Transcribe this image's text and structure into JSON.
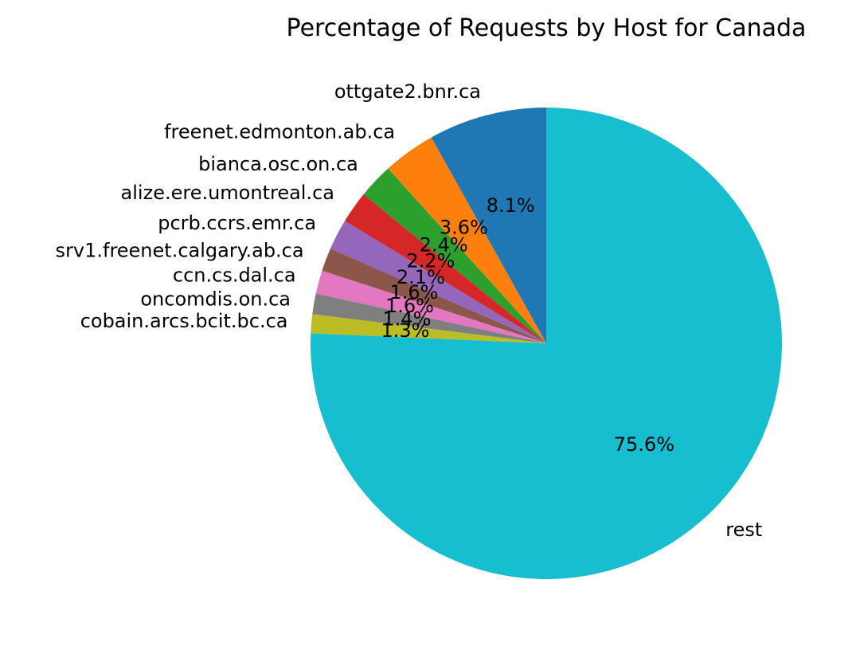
{
  "chart_data": {
    "type": "pie",
    "title": "Percentage of Requests by Host for Canada",
    "start_angle_deg": 90,
    "direction": "counterclockwise",
    "slices": [
      {
        "label": "ottgate2.bnr.ca",
        "value": 8.1,
        "pct_label": "8.1%",
        "color": "#1f77b4"
      },
      {
        "label": "freenet.edmonton.ab.ca",
        "value": 3.6,
        "pct_label": "3.6%",
        "color": "#ff7f0e"
      },
      {
        "label": "bianca.osc.on.ca",
        "value": 2.4,
        "pct_label": "2.4%",
        "color": "#2ca02c"
      },
      {
        "label": "alize.ere.umontreal.ca",
        "value": 2.2,
        "pct_label": "2.2%",
        "color": "#d62728"
      },
      {
        "label": "pcrb.ccrs.emr.ca",
        "value": 2.1,
        "pct_label": "2.1%",
        "color": "#9467bd"
      },
      {
        "label": "srv1.freenet.calgary.ab.ca",
        "value": 1.6,
        "pct_label": "1.6%",
        "color": "#8c564b"
      },
      {
        "label": "ccn.cs.dal.ca",
        "value": 1.6,
        "pct_label": "1.6%",
        "color": "#e377c2"
      },
      {
        "label": "oncomdis.on.ca",
        "value": 1.4,
        "pct_label": "1.4%",
        "color": "#7f7f7f"
      },
      {
        "label": "cobain.arcs.bcit.bc.ca",
        "value": 1.3,
        "pct_label": "1.3%",
        "color": "#bcbd22"
      },
      {
        "label": "rest",
        "value": 75.6,
        "pct_label": "75.6%",
        "color": "#17becf"
      }
    ]
  }
}
